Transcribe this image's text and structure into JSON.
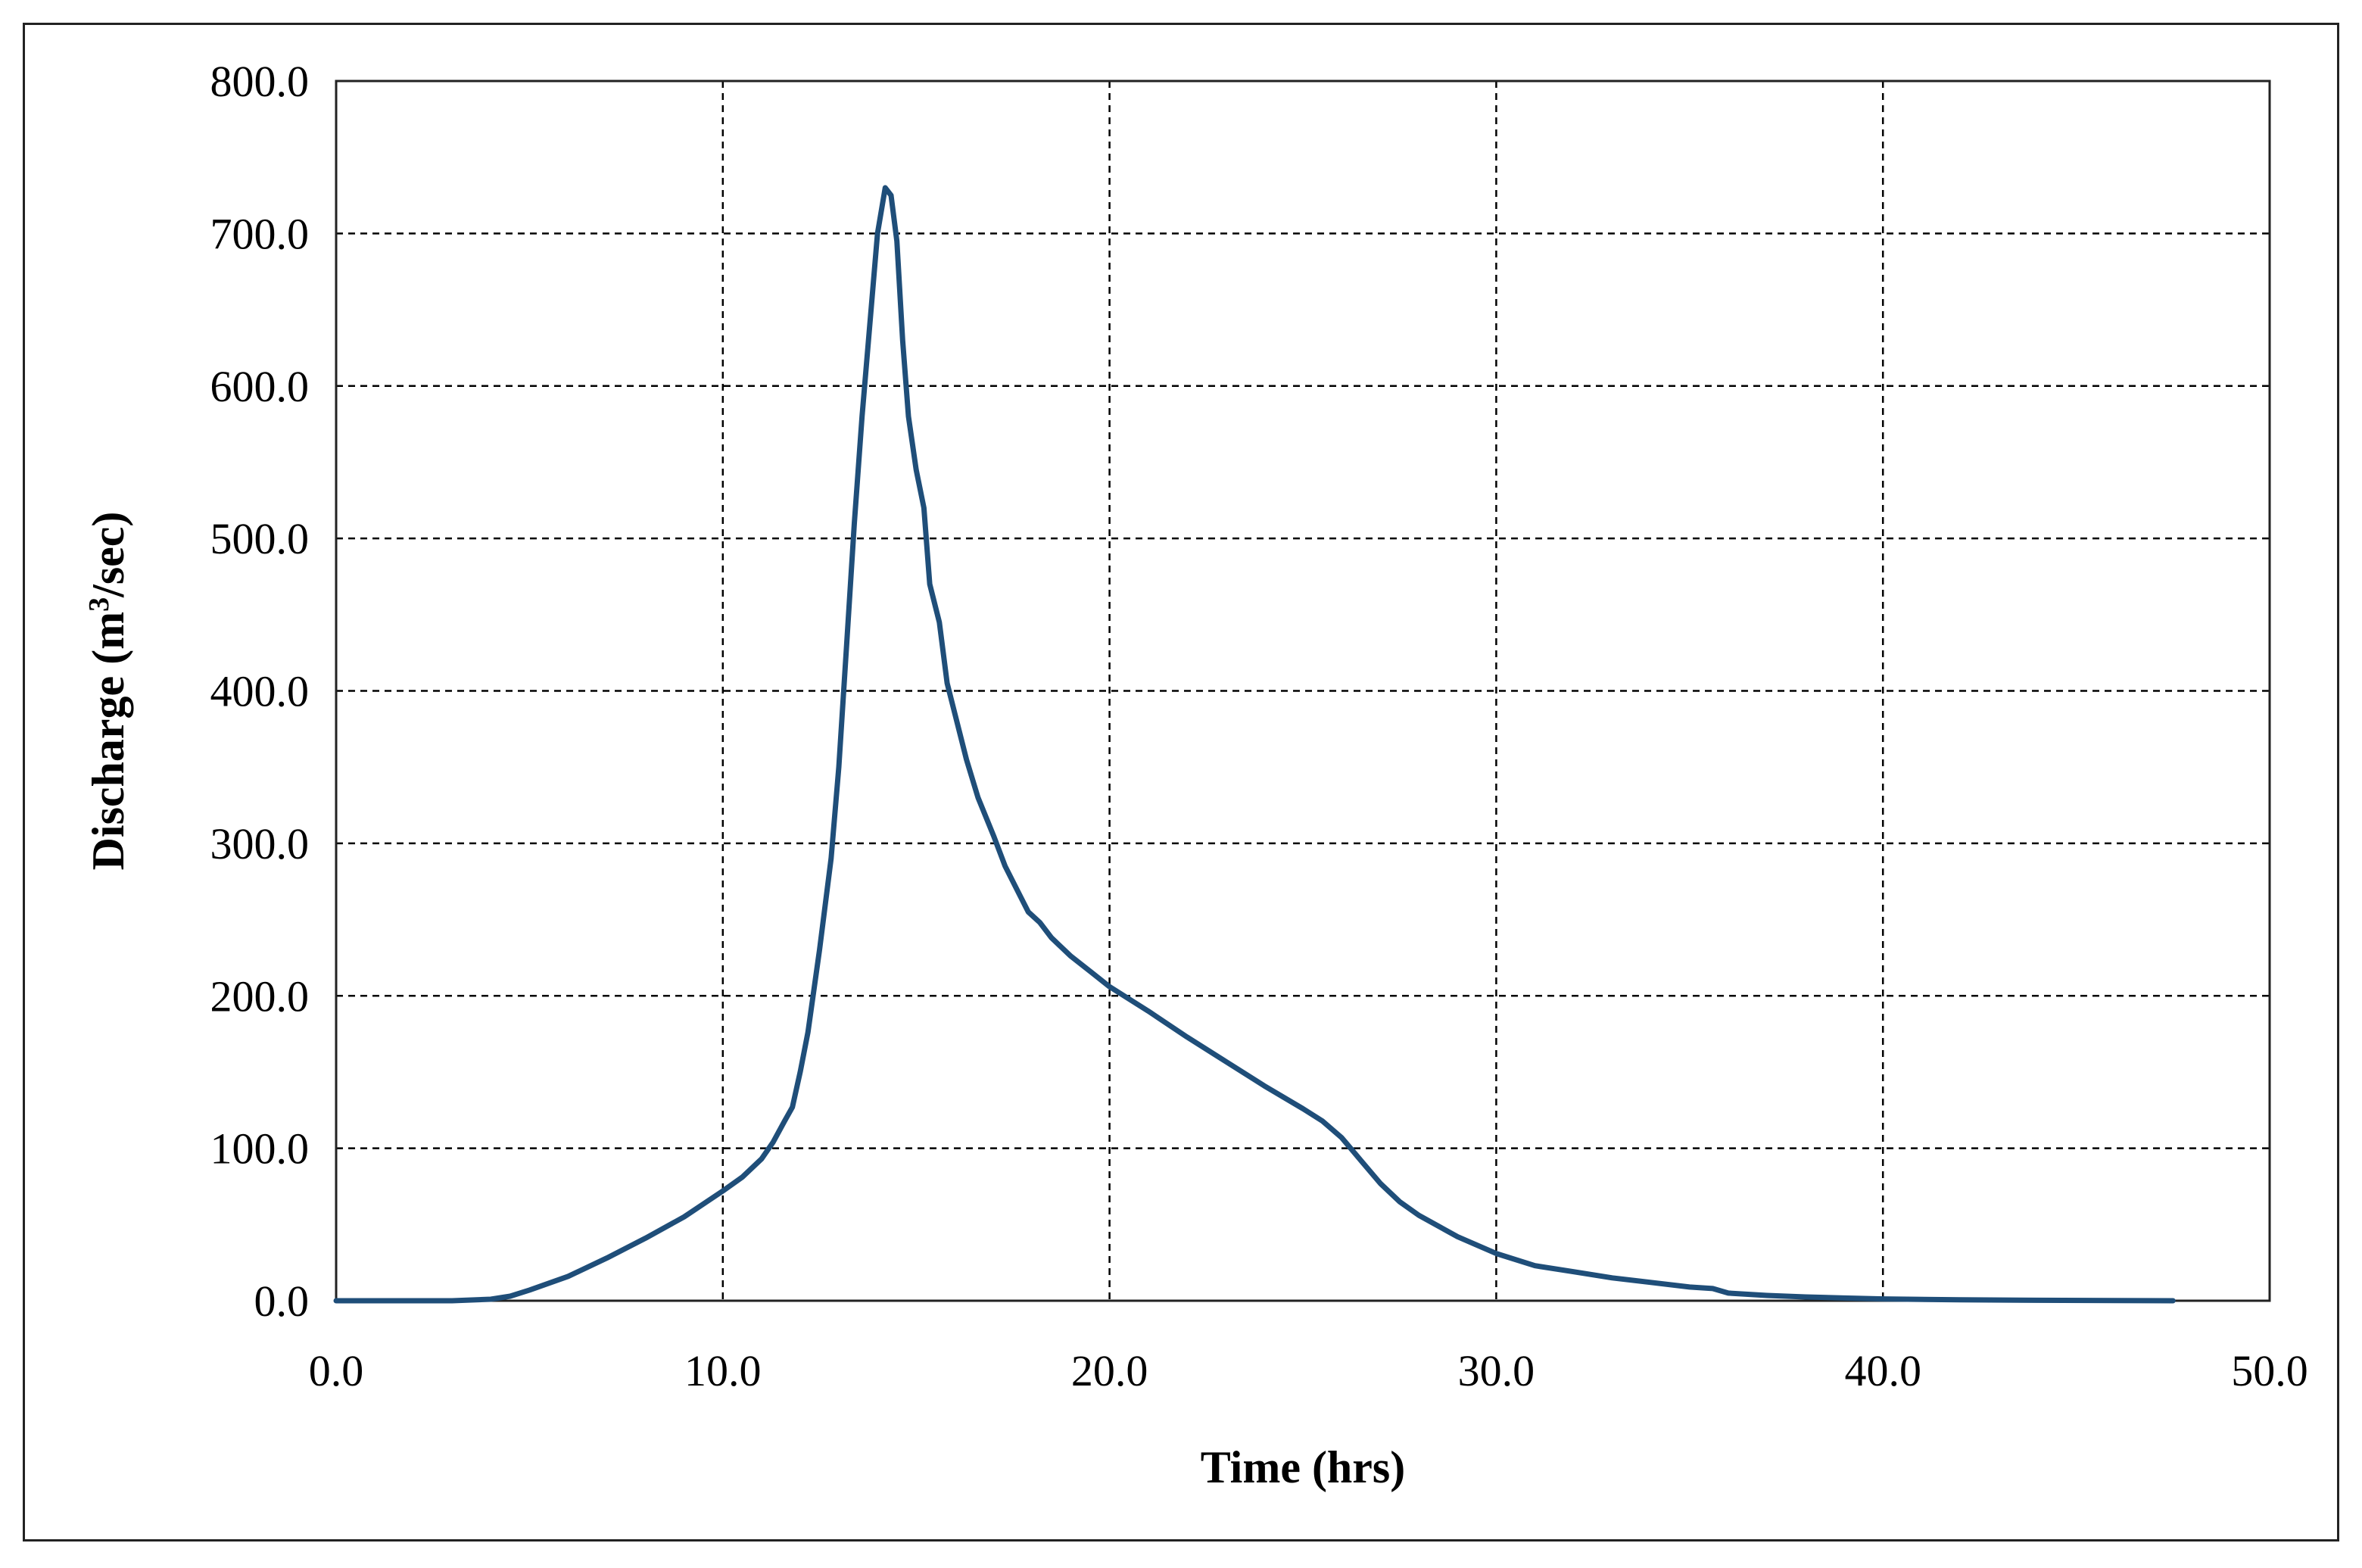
{
  "chart_data": {
    "type": "line",
    "title": "",
    "xlabel": "Time (hrs)",
    "ylabel_parts": {
      "prefix": "Discharge (m",
      "sup": "3",
      "suffix": "/sec)"
    },
    "xlim": [
      0,
      50
    ],
    "ylim": [
      0,
      800
    ],
    "x_ticks": [
      0,
      10,
      20,
      30,
      40,
      50
    ],
    "y_ticks": [
      0,
      100,
      200,
      300,
      400,
      500,
      600,
      700,
      800
    ],
    "x_tick_labels": [
      "0.0",
      "10.0",
      "20.0",
      "30.0",
      "40.0",
      "50.0"
    ],
    "y_tick_labels": [
      "0.0",
      "100.0",
      "200.0",
      "300.0",
      "400.0",
      "500.0",
      "600.0",
      "700.0",
      "800.0"
    ],
    "grid": "dashed",
    "legend": "none",
    "series": [
      {
        "color": "#1f4e79",
        "points": [
          [
            0,
            0
          ],
          [
            3,
            0
          ],
          [
            4,
            1
          ],
          [
            4.5,
            3
          ],
          [
            5,
            7
          ],
          [
            6,
            16
          ],
          [
            7,
            28
          ],
          [
            8,
            41
          ],
          [
            9,
            55
          ],
          [
            10,
            72
          ],
          [
            10.5,
            81
          ],
          [
            11,
            93
          ],
          [
            11.3,
            104
          ],
          [
            11.6,
            118
          ],
          [
            11.8,
            127
          ],
          [
            12,
            150
          ],
          [
            12.2,
            176
          ],
          [
            12.5,
            230
          ],
          [
            12.8,
            290
          ],
          [
            13,
            350
          ],
          [
            13.2,
            430
          ],
          [
            13.4,
            510
          ],
          [
            13.6,
            580
          ],
          [
            13.8,
            640
          ],
          [
            14,
            700
          ],
          [
            14.2,
            730
          ],
          [
            14.35,
            725
          ],
          [
            14.5,
            695
          ],
          [
            14.65,
            630
          ],
          [
            14.8,
            580
          ],
          [
            15,
            545
          ],
          [
            15.2,
            520
          ],
          [
            15.35,
            470
          ],
          [
            15.6,
            445
          ],
          [
            15.8,
            405
          ],
          [
            16,
            385
          ],
          [
            16.3,
            355
          ],
          [
            16.6,
            330
          ],
          [
            17,
            305
          ],
          [
            17.3,
            285
          ],
          [
            17.7,
            265
          ],
          [
            17.9,
            255
          ],
          [
            18.2,
            248
          ],
          [
            18.5,
            238
          ],
          [
            19,
            226
          ],
          [
            19.5,
            216
          ],
          [
            20,
            206
          ],
          [
            21,
            190
          ],
          [
            22,
            173
          ],
          [
            23,
            157
          ],
          [
            24,
            141
          ],
          [
            25,
            126
          ],
          [
            25.5,
            118
          ],
          [
            26,
            107
          ],
          [
            26.5,
            92
          ],
          [
            27,
            77
          ],
          [
            27.5,
            65
          ],
          [
            28,
            56
          ],
          [
            29,
            42
          ],
          [
            30,
            31
          ],
          [
            31,
            23
          ],
          [
            32,
            19
          ],
          [
            33,
            15
          ],
          [
            34,
            12
          ],
          [
            35,
            9
          ],
          [
            35.6,
            8
          ],
          [
            36,
            5
          ],
          [
            37,
            3.5
          ],
          [
            38,
            2.5
          ],
          [
            39,
            1.8
          ],
          [
            40,
            1.2
          ],
          [
            42,
            0.6
          ],
          [
            44,
            0.3
          ],
          [
            46,
            0.1
          ],
          [
            47.5,
            0
          ]
        ]
      }
    ]
  }
}
